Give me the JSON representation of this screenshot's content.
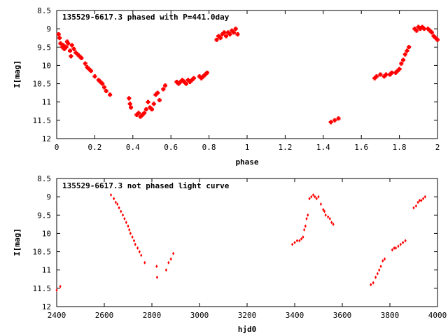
{
  "colors": {
    "marker": "#ff0000",
    "axis": "#000000",
    "background": "#ffffff"
  },
  "chart_data": [
    {
      "type": "scatter",
      "title": "135529-6617.3 phased with P=441.0day",
      "xlabel": "phase",
      "ylabel": "I[mag]",
      "xlim": [
        0,
        2
      ],
      "ylim": [
        12,
        8.5
      ],
      "y_inverted": true,
      "grid": false,
      "xticks": [
        "0",
        "0.2",
        "0.4",
        "0.6",
        "0.8",
        "1",
        "1.2",
        "1.4",
        "1.6",
        "1.8",
        "2"
      ],
      "yticks": [
        "8.5",
        "9",
        "9.5",
        "10",
        "10.5",
        "11",
        "11.5",
        "12"
      ],
      "marker": "plus",
      "series": [
        {
          "x": [
            0.01,
            0.015,
            0.02,
            0.03,
            0.035,
            0.04,
            0.05,
            0.055,
            0.06,
            0.07,
            0.075,
            0.08,
            0.09,
            0.1,
            0.11,
            0.12,
            0.13,
            0.15,
            0.16,
            0.17,
            0.18,
            0.2,
            0.22,
            0.23,
            0.24,
            0.25,
            0.26,
            0.28,
            0.38,
            0.385,
            0.39,
            0.42,
            0.43,
            0.44,
            0.45,
            0.46,
            0.47,
            0.48,
            0.49,
            0.5,
            0.51,
            0.52,
            0.53,
            0.54,
            0.56,
            0.57,
            0.63,
            0.64,
            0.65,
            0.66,
            0.67,
            0.68,
            0.69,
            0.7,
            0.71,
            0.72,
            0.75,
            0.76,
            0.77,
            0.78,
            0.79,
            0.84,
            0.85,
            0.86,
            0.87,
            0.88,
            0.89,
            0.9,
            0.91,
            0.92,
            0.93,
            0.94,
            0.95,
            1.44,
            1.46,
            1.48,
            1.67,
            1.68,
            1.7,
            1.72,
            1.73,
            1.75,
            1.76,
            1.78,
            1.79,
            1.8,
            1.81,
            1.82,
            1.83,
            1.84,
            1.85,
            1.88,
            1.89,
            1.9,
            1.91,
            1.92,
            1.93,
            1.95,
            1.96,
            1.97,
            1.98,
            1.99,
            2.0
          ],
          "y": [
            9.15,
            9.25,
            9.4,
            9.5,
            9.45,
            9.55,
            9.5,
            9.35,
            9.4,
            9.6,
            9.75,
            9.45,
            9.55,
            9.65,
            9.7,
            9.75,
            9.8,
            9.95,
            10.05,
            10.1,
            10.15,
            10.3,
            10.4,
            10.45,
            10.5,
            10.6,
            10.7,
            10.8,
            10.9,
            11.05,
            11.15,
            11.35,
            11.3,
            11.4,
            11.35,
            11.3,
            11.2,
            11.0,
            11.15,
            11.2,
            11.05,
            10.8,
            10.75,
            10.95,
            10.65,
            10.55,
            10.45,
            10.5,
            10.45,
            10.4,
            10.45,
            10.5,
            10.4,
            10.45,
            10.4,
            10.35,
            10.3,
            10.35,
            10.3,
            10.25,
            10.2,
            9.3,
            9.2,
            9.25,
            9.15,
            9.1,
            9.2,
            9.1,
            9.15,
            9.05,
            9.1,
            9.0,
            9.15,
            11.55,
            11.5,
            11.45,
            10.35,
            10.3,
            10.25,
            10.3,
            10.25,
            10.25,
            10.2,
            10.2,
            10.15,
            10.1,
            9.95,
            9.85,
            9.7,
            9.6,
            9.5,
            9.0,
            9.05,
            8.95,
            9.0,
            8.95,
            9.0,
            9.0,
            9.05,
            9.1,
            9.2,
            9.25,
            9.3
          ]
        }
      ]
    },
    {
      "type": "scatter",
      "title": "135529-6617.3 not phased light curve",
      "xlabel": "hjd0",
      "ylabel": "I[mag]",
      "xlim": [
        2400,
        4000
      ],
      "ylim": [
        12,
        8.5
      ],
      "y_inverted": true,
      "grid": false,
      "xticks": [
        "2400",
        "2600",
        "2800",
        "3000",
        "3200",
        "3400",
        "3600",
        "3800",
        "4000"
      ],
      "yticks": [
        "8.5",
        "9",
        "9.5",
        "10",
        "10.5",
        "11",
        "11.5",
        "12"
      ],
      "marker": "diamond",
      "series": [
        {
          "x": [
            2400,
            2415,
            2628,
            2640,
            2648,
            2655,
            2662,
            2670,
            2678,
            2685,
            2692,
            2700,
            2705,
            2710,
            2718,
            2725,
            2730,
            2740,
            2748,
            2755,
            2770,
            2820,
            2822,
            2860,
            2870,
            2880,
            2890,
            3390,
            3400,
            3410,
            3420,
            3428,
            3435,
            3440,
            3445,
            3450,
            3455,
            3462,
            3470,
            3478,
            3485,
            3492,
            3500,
            3510,
            3520,
            3525,
            3530,
            3540,
            3548,
            3555,
            3562,
            3720,
            3730,
            3740,
            3748,
            3755,
            3762,
            3770,
            3778,
            3810,
            3818,
            3825,
            3835,
            3845,
            3855,
            3865,
            3900,
            3910,
            3918,
            3925,
            3932,
            3940,
            3948
          ],
          "y": [
            11.55,
            11.45,
            8.95,
            9.05,
            9.15,
            9.2,
            9.3,
            9.4,
            9.5,
            9.6,
            9.7,
            9.8,
            9.9,
            10.0,
            10.1,
            10.2,
            10.3,
            10.4,
            10.5,
            10.6,
            10.8,
            10.9,
            11.2,
            11.0,
            10.8,
            10.7,
            10.55,
            10.3,
            10.25,
            10.2,
            10.2,
            10.15,
            10.1,
            9.9,
            9.8,
            9.6,
            9.5,
            9.05,
            9.0,
            8.95,
            9.0,
            9.05,
            9.0,
            9.2,
            9.35,
            9.4,
            9.5,
            9.55,
            9.6,
            9.7,
            9.75,
            11.4,
            11.35,
            11.2,
            11.1,
            11.0,
            10.9,
            10.75,
            10.7,
            10.45,
            10.4,
            10.4,
            10.35,
            10.3,
            10.25,
            10.2,
            9.3,
            9.25,
            9.15,
            9.1,
            9.1,
            9.05,
            9.0
          ]
        }
      ]
    }
  ]
}
